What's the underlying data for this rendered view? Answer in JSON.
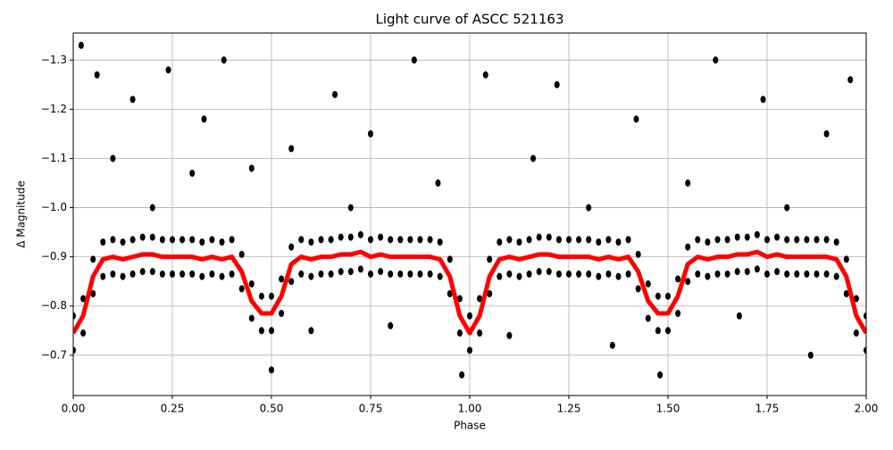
{
  "chart_data": {
    "type": "scatter",
    "title": "Light curve of ASCC 521163",
    "x_label": "Phase",
    "y_label": "Δ Magnitude",
    "xlim": [
      0,
      2
    ],
    "ylim": [
      -0.618,
      -1.355
    ],
    "xticks": [
      {
        "value": 0,
        "label": "0.00"
      },
      {
        "value": 0.25,
        "label": "0.25"
      },
      {
        "value": 0.5,
        "label": "0.50"
      },
      {
        "value": 0.75,
        "label": "0.75"
      },
      {
        "value": 1,
        "label": "1.00"
      },
      {
        "value": 1.25,
        "label": "1.25"
      },
      {
        "value": 1.5,
        "label": "1.50"
      },
      {
        "value": 1.75,
        "label": "1.75"
      },
      {
        "value": 2,
        "label": "2.00"
      }
    ],
    "yticks": [
      {
        "value": -1.3,
        "label": "−1.3"
      },
      {
        "value": -1.2,
        "label": "−1.2"
      },
      {
        "value": -1.1,
        "label": "−1.1"
      },
      {
        "value": -1.0,
        "label": "−1.0"
      },
      {
        "value": -0.9,
        "label": "−0.9"
      },
      {
        "value": -0.8,
        "label": "−0.8"
      },
      {
        "value": -0.7,
        "label": "−0.7"
      }
    ],
    "grid": true,
    "point_color": "#000000",
    "model_color": "#ff0000",
    "x": [
      0,
      0.025,
      0.05,
      0.075,
      0.1,
      0.125,
      0.15,
      0.175,
      0.2,
      0.225,
      0.25,
      0.275,
      0.3,
      0.325,
      0.35,
      0.375,
      0.4,
      0.425,
      0.45,
      0.475,
      0.5,
      0.525,
      0.55,
      0.575,
      0.6,
      0.625,
      0.65,
      0.675,
      0.7,
      0.725,
      0.75,
      0.775,
      0.8,
      0.825,
      0.85,
      0.875,
      0.9,
      0.925,
      0.95,
      0.975,
      1,
      1.025,
      1.05,
      1.075,
      1.1,
      1.125,
      1.15,
      1.175,
      1.2,
      1.225,
      1.25,
      1.275,
      1.3,
      1.325,
      1.35,
      1.375,
      1.4,
      1.425,
      1.45,
      1.475,
      1.5,
      1.525,
      1.55,
      1.575,
      1.6,
      1.625,
      1.65,
      1.675,
      1.7,
      1.725,
      1.75,
      1.775,
      1.8,
      1.825,
      1.85,
      1.875,
      1.9,
      1.925,
      1.95,
      1.975,
      2
    ],
    "model": [
      -0.745,
      -0.78,
      -0.86,
      -0.895,
      -0.9,
      -0.895,
      -0.9,
      -0.905,
      -0.905,
      -0.9,
      -0.9,
      -0.9,
      -0.9,
      -0.895,
      -0.9,
      -0.895,
      -0.9,
      -0.87,
      -0.81,
      -0.785,
      -0.785,
      -0.82,
      -0.885,
      -0.9,
      -0.895,
      -0.9,
      -0.9,
      -0.905,
      -0.905,
      -0.91,
      -0.9,
      -0.905,
      -0.9,
      -0.9,
      -0.9,
      -0.9,
      -0.9,
      -0.895,
      -0.86,
      -0.78,
      -0.745,
      -0.78,
      -0.86,
      -0.895,
      -0.9,
      -0.895,
      -0.9,
      -0.905,
      -0.905,
      -0.9,
      -0.9,
      -0.9,
      -0.9,
      -0.895,
      -0.9,
      -0.895,
      -0.9,
      -0.87,
      -0.81,
      -0.785,
      -0.785,
      -0.82,
      -0.885,
      -0.9,
      -0.895,
      -0.9,
      -0.9,
      -0.905,
      -0.905,
      -0.91,
      -0.9,
      -0.905,
      -0.9,
      -0.9,
      -0.9,
      -0.9,
      -0.9,
      -0.895,
      -0.86,
      -0.78,
      -0.745
    ],
    "scatter_upper": [
      -0.78,
      -0.815,
      -0.895,
      -0.93,
      -0.935,
      -0.93,
      -0.935,
      -0.94,
      -0.94,
      -0.935,
      -0.935,
      -0.935,
      -0.935,
      -0.93,
      -0.935,
      -0.93,
      -0.935,
      -0.905,
      -0.845,
      -0.82,
      -0.82,
      -0.855,
      -0.92,
      -0.935,
      -0.93,
      -0.935,
      -0.935,
      -0.94,
      -0.94,
      -0.945,
      -0.935,
      -0.94,
      -0.935,
      -0.935,
      -0.935,
      -0.935,
      -0.935,
      -0.93,
      -0.895,
      -0.815,
      -0.78,
      -0.815,
      -0.895,
      -0.93,
      -0.935,
      -0.93,
      -0.935,
      -0.94,
      -0.94,
      -0.935,
      -0.935,
      -0.935,
      -0.935,
      -0.93,
      -0.935,
      -0.93,
      -0.935,
      -0.905,
      -0.845,
      -0.82,
      -0.82,
      -0.855,
      -0.92,
      -0.935,
      -0.93,
      -0.935,
      -0.935,
      -0.94,
      -0.94,
      -0.945,
      -0.935,
      -0.94,
      -0.935,
      -0.935,
      -0.935,
      -0.935,
      -0.935,
      -0.93,
      -0.895,
      -0.815,
      -0.78
    ],
    "scatter_lower": [
      -0.71,
      -0.745,
      -0.825,
      -0.86,
      -0.865,
      -0.86,
      -0.865,
      -0.87,
      -0.87,
      -0.865,
      -0.865,
      -0.865,
      -0.865,
      -0.86,
      -0.865,
      -0.86,
      -0.865,
      -0.835,
      -0.775,
      -0.75,
      -0.75,
      -0.785,
      -0.85,
      -0.865,
      -0.86,
      -0.865,
      -0.865,
      -0.87,
      -0.87,
      -0.875,
      -0.865,
      -0.87,
      -0.865,
      -0.865,
      -0.865,
      -0.865,
      -0.865,
      -0.86,
      -0.825,
      -0.745,
      -0.71,
      -0.745,
      -0.825,
      -0.86,
      -0.865,
      -0.86,
      -0.865,
      -0.87,
      -0.87,
      -0.865,
      -0.865,
      -0.865,
      -0.865,
      -0.86,
      -0.865,
      -0.86,
      -0.865,
      -0.835,
      -0.775,
      -0.75,
      -0.75,
      -0.785,
      -0.85,
      -0.865,
      -0.86,
      -0.865,
      -0.865,
      -0.87,
      -0.87,
      -0.875,
      -0.865,
      -0.87,
      -0.865,
      -0.865,
      -0.865,
      -0.865,
      -0.865,
      -0.86,
      -0.825,
      -0.745,
      -0.71
    ],
    "outliers": {
      "x": [
        0.02,
        0.06,
        0.1,
        0.15,
        0.2,
        0.24,
        0.3,
        0.33,
        0.38,
        0.45,
        0.5,
        0.55,
        0.6,
        0.66,
        0.7,
        0.75,
        0.8,
        0.86,
        0.92,
        0.98,
        1.04,
        1.1,
        1.16,
        1.22,
        1.3,
        1.36,
        1.42,
        1.48,
        1.55,
        1.62,
        1.68,
        1.74,
        1.8,
        1.86,
        1.9,
        1.96
      ],
      "y": [
        -1.33,
        -1.27,
        -1.1,
        -1.22,
        -1.0,
        -1.28,
        -1.07,
        -1.18,
        -1.3,
        -1.08,
        -0.67,
        -1.12,
        -0.75,
        -1.23,
        -1.0,
        -1.15,
        -0.76,
        -1.3,
        -1.05,
        -0.66,
        -1.27,
        -0.74,
        -1.1,
        -1.25,
        -1.0,
        -0.72,
        -1.18,
        -0.66,
        -1.05,
        -1.3,
        -0.78,
        -1.22,
        -1.0,
        -0.7,
        -1.15,
        -1.26
      ]
    }
  }
}
